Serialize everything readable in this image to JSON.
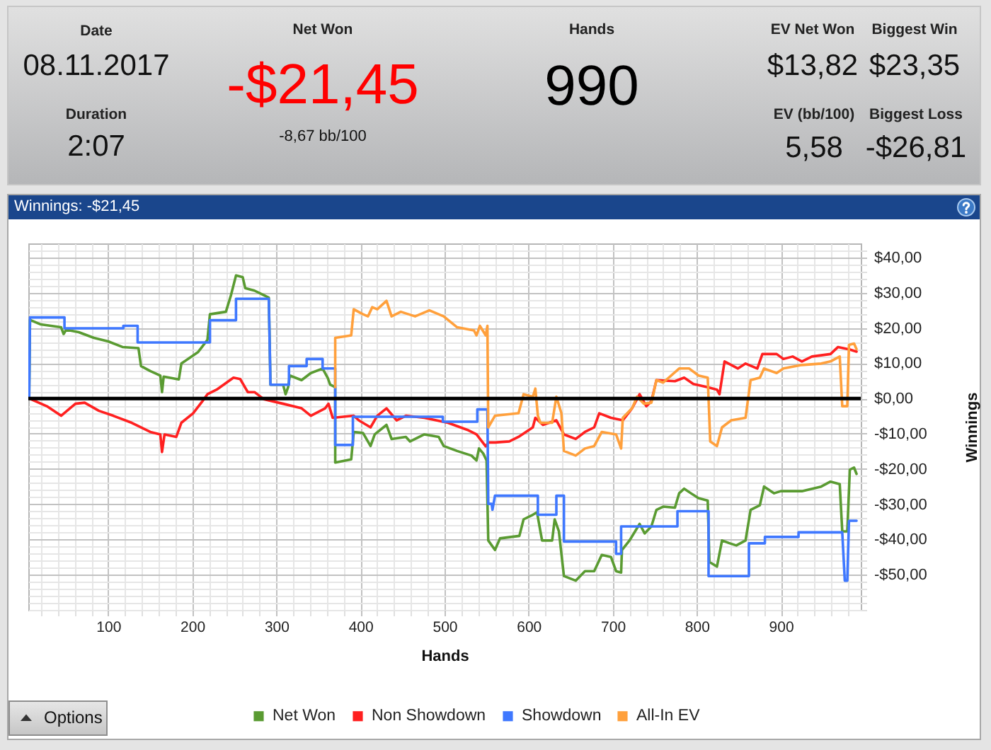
{
  "chart_data": [
    {
      "type": "other",
      "annotations": [
        "Date",
        "08.11.2017",
        "Duration",
        "2:07",
        "Net Won",
        "-$21,45",
        "-8,67 bb/100",
        "Hands",
        "990",
        "EV Net Won",
        "$13,82",
        "EV (bb/100)",
        "5,58",
        "Biggest Win",
        "$23,35",
        "Biggest Loss",
        "-$26,81"
      ]
    },
    {
      "type": "line",
      "title": "Winnings: -$21,45",
      "xlabel": "Hands",
      "ylabel": "Winnings",
      "xlim": [
        5,
        995
      ],
      "ylim": [
        -60,
        44
      ],
      "xticks": [
        {
          "value": 20,
          "label": null
        },
        {
          "value": 40,
          "label": null
        },
        {
          "value": 60,
          "label": null
        },
        {
          "value": 80,
          "label": null
        },
        100,
        {
          "value": 120,
          "label": null
        },
        {
          "value": 140,
          "label": null
        },
        {
          "value": 160,
          "label": null
        },
        {
          "value": 180,
          "label": null
        },
        200,
        {
          "value": 220,
          "label": null
        },
        {
          "value": 240,
          "label": null
        },
        {
          "value": 260,
          "label": null
        },
        {
          "value": 280,
          "label": null
        },
        300,
        {
          "value": 320,
          "label": null
        },
        {
          "value": 340,
          "label": null
        },
        {
          "value": 360,
          "label": null
        },
        {
          "value": 380,
          "label": null
        },
        400,
        {
          "value": 420,
          "label": null
        },
        {
          "value": 440,
          "label": null
        },
        {
          "value": 460,
          "label": null
        },
        {
          "value": 480,
          "label": null
        },
        500,
        {
          "value": 520,
          "label": null
        },
        {
          "value": 540,
          "label": null
        },
        {
          "value": 560,
          "label": null
        },
        {
          "value": 580,
          "label": null
        },
        600,
        {
          "value": 620,
          "label": null
        },
        {
          "value": 640,
          "label": null
        },
        {
          "value": 660,
          "label": null
        },
        {
          "value": 680,
          "label": null
        },
        700,
        {
          "value": 720,
          "label": null
        },
        {
          "value": 740,
          "label": null
        },
        {
          "value": 760,
          "label": null
        },
        {
          "value": 780,
          "label": null
        },
        800,
        {
          "value": 820,
          "label": null
        },
        {
          "value": 840,
          "label": null
        },
        {
          "value": 860,
          "label": null
        },
        {
          "value": 880,
          "label": null
        },
        900,
        {
          "value": 920,
          "label": null
        },
        {
          "value": 940,
          "label": null
        },
        {
          "value": 960,
          "label": null
        },
        {
          "value": 980,
          "label": null
        }
      ],
      "yticks": [
        {
          "value": -60,
          "label": null
        },
        {
          "value": -58,
          "label": null
        },
        {
          "value": -56,
          "label": null
        },
        {
          "value": -54,
          "label": null
        },
        {
          "value": -52,
          "label": null
        },
        {
          "value": -50,
          "label": "-$50,00"
        },
        {
          "value": -48,
          "label": null
        },
        {
          "value": -46,
          "label": null
        },
        {
          "value": -44,
          "label": null
        },
        {
          "value": -42,
          "label": null
        },
        {
          "value": -40,
          "label": "-$40,00"
        },
        {
          "value": -38,
          "label": null
        },
        {
          "value": -36,
          "label": null
        },
        {
          "value": -34,
          "label": null
        },
        {
          "value": -32,
          "label": null
        },
        {
          "value": -30,
          "label": "-$30,00"
        },
        {
          "value": -28,
          "label": null
        },
        {
          "value": -26,
          "label": null
        },
        {
          "value": -24,
          "label": null
        },
        {
          "value": -22,
          "label": null
        },
        {
          "value": -20,
          "label": "-$20,00"
        },
        {
          "value": -18,
          "label": null
        },
        {
          "value": -16,
          "label": null
        },
        {
          "value": -14,
          "label": null
        },
        {
          "value": -12,
          "label": null
        },
        {
          "value": -10,
          "label": "-$10,00"
        },
        {
          "value": -8,
          "label": null
        },
        {
          "value": -6,
          "label": null
        },
        {
          "value": -4,
          "label": null
        },
        {
          "value": -2,
          "label": null
        },
        {
          "value": 0,
          "label": "$0,00"
        },
        {
          "value": 2,
          "label": null
        },
        {
          "value": 4,
          "label": null
        },
        {
          "value": 6,
          "label": null
        },
        {
          "value": 8,
          "label": null
        },
        {
          "value": 10,
          "label": "$10,00"
        },
        {
          "value": 12,
          "label": null
        },
        {
          "value": 14,
          "label": null
        },
        {
          "value": 16,
          "label": null
        },
        {
          "value": 18,
          "label": null
        },
        {
          "value": 20,
          "label": "$20,00"
        },
        {
          "value": 22,
          "label": null
        },
        {
          "value": 24,
          "label": null
        },
        {
          "value": 26,
          "label": null
        },
        {
          "value": 28,
          "label": null
        },
        {
          "value": 30,
          "label": "$30,00"
        },
        {
          "value": 32,
          "label": null
        },
        {
          "value": 34,
          "label": null
        },
        {
          "value": 36,
          "label": null
        },
        {
          "value": 38,
          "label": null
        },
        {
          "value": 40,
          "label": "$40,00"
        },
        {
          "value": 42,
          "label": null
        }
      ],
      "grid": true,
      "legend": "bottom",
      "ref_lines": [
        {
          "axis": "y",
          "value": 0,
          "color": "#000000"
        }
      ],
      "annotations": [
        "Options"
      ],
      "series": [
        {
          "name": "Net Won",
          "color": "#5a9b32",
          "x": [
            6,
            7,
            20,
            35,
            44,
            47,
            50,
            65,
            83,
            100,
            117,
            136,
            139,
            150,
            162,
            164,
            166,
            184,
            187,
            207,
            218,
            221,
            240,
            246,
            252,
            260,
            263,
            274,
            285,
            291,
            293,
            308,
            311,
            314,
            316,
            330,
            341,
            355,
            361,
            364,
            370,
            370,
            389,
            392,
            403,
            412,
            417,
            431,
            437,
            454,
            459,
            476,
            493,
            499,
            515,
            532,
            538,
            541,
            546,
            550,
            552,
            560,
            566,
            589,
            594,
            605,
            610,
            614,
            616,
            628,
            631,
            636,
            642,
            656,
            667,
            678,
            687,
            698,
            704,
            710,
            711,
            720,
            732,
            738,
            746,
            752,
            760,
            774,
            779,
            785,
            793,
            802,
            813,
            815,
            824,
            830,
            838,
            847,
            858,
            864,
            875,
            880,
            892,
            900,
            925,
            948,
            959,
            970,
            973,
            979,
            982,
            987,
            990
          ],
          "values": [
            0,
            22.3,
            21,
            20.5,
            20.2,
            18.3,
            19.5,
            18.8,
            17.2,
            16.2,
            14.6,
            14.3,
            9.2,
            7.8,
            6.5,
            1.8,
            6.2,
            5.4,
            9.9,
            13.2,
            16.6,
            23.9,
            24.6,
            29.3,
            34.9,
            34.4,
            31.3,
            30.6,
            29.3,
            28.6,
            3.9,
            3.9,
            1.2,
            3.2,
            6.5,
            5.2,
            7.2,
            8.5,
            5.9,
            3.9,
            3.2,
            -18.2,
            -17.3,
            -9.5,
            -9.8,
            -13.5,
            -10.2,
            -7.5,
            -11.5,
            -10.9,
            -12.2,
            -10.2,
            -10.9,
            -13.5,
            -14.9,
            -16.2,
            -17.6,
            -14.2,
            -15.6,
            -17.6,
            -40.3,
            -43,
            -39.7,
            -39,
            -34.3,
            -33,
            -32.3,
            -37.7,
            -40.3,
            -40.3,
            -34.3,
            -37.7,
            -50.4,
            -51.7,
            -49,
            -49,
            -44.4,
            -45,
            -49,
            -49.4,
            -43,
            -40.3,
            -35.6,
            -38.3,
            -36.3,
            -31.6,
            -30.7,
            -31,
            -26.9,
            -25.6,
            -26.9,
            -28.3,
            -29,
            -46.4,
            -47.7,
            -40.3,
            -41,
            -41.7,
            -40.3,
            -31.6,
            -30.3,
            -25,
            -26.9,
            -26.3,
            -26.3,
            -25,
            -23.6,
            -24.3,
            -37.7,
            -37.7,
            -20.2,
            -19.6,
            -21.4
          ]
        },
        {
          "name": "Non Showdown",
          "color": "#ff2020",
          "x": [
            6,
            27,
            44,
            61,
            72,
            89,
            106,
            128,
            150,
            162,
            164,
            167,
            181,
            187,
            201,
            212,
            218,
            229,
            249,
            257,
            266,
            274,
            285,
            308,
            330,
            341,
            358,
            362,
            367,
            392,
            398,
            412,
            420,
            431,
            443,
            454,
            476,
            504,
            527,
            538,
            549,
            552,
            560,
            577,
            588,
            605,
            608,
            617,
            633,
            642,
            656,
            667,
            678,
            684,
            698,
            712,
            723,
            732,
            740,
            746,
            752,
            774,
            785,
            796,
            813,
            824,
            827,
            833,
            849,
            858,
            872,
            878,
            895,
            903,
            914,
            925,
            937,
            959,
            968,
            982,
            990
          ],
          "values": [
            0,
            -2.2,
            -4.9,
            -1.5,
            -1.2,
            -3.5,
            -4.9,
            -6.9,
            -9.5,
            -10.2,
            -15.2,
            -10.2,
            -10.9,
            -6.9,
            -4.2,
            -0.8,
            1.2,
            2.5,
            5.9,
            5.5,
            1.8,
            1.8,
            -0.2,
            -1.5,
            -2.8,
            -4.9,
            -2.8,
            -1.5,
            -5.5,
            -4.9,
            -6.2,
            -8.2,
            -4.9,
            -2.8,
            -6.2,
            -4.9,
            -5.5,
            -6.9,
            -8.9,
            -10.2,
            -13.6,
            -12.5,
            -12.5,
            -12.2,
            -10.9,
            -8.2,
            -5.5,
            -7.5,
            -6.2,
            -10.2,
            -11.5,
            -9.5,
            -8.2,
            -4.2,
            -5.5,
            -6.2,
            -2.8,
            1.2,
            -2.2,
            -0.8,
            5.2,
            4.9,
            5.9,
            4.1,
            3.2,
            2.5,
            1.2,
            10.5,
            8.5,
            9.9,
            8.5,
            12.6,
            12.6,
            11.2,
            11.9,
            10.5,
            11.9,
            12.6,
            14.6,
            13.9,
            13.3
          ]
        },
        {
          "name": "Showdown",
          "color": "#3f78ff",
          "x": [
            6,
            7,
            48,
            48,
            118,
            118,
            135,
            135,
            221,
            221,
            252,
            252,
            291,
            293,
            315,
            315,
            336,
            336,
            355,
            355,
            370,
            370,
            391,
            391,
            498,
            498,
            539,
            539,
            551,
            552,
            556,
            557,
            560,
            611,
            611,
            633,
            633,
            642,
            642,
            704,
            704,
            710,
            710,
            777,
            777,
            814,
            814,
            862,
            862,
            881,
            881,
            921,
            921,
            973,
            976,
            979,
            981,
            990
          ],
          "values": [
            0,
            23,
            23,
            19.9,
            19.9,
            20.6,
            20.6,
            15.9,
            15.9,
            22.2,
            22.2,
            28.3,
            28.3,
            3.9,
            3.9,
            9.2,
            9.2,
            11.2,
            11.2,
            8.5,
            8.5,
            -13.2,
            -13.2,
            -5.2,
            -5.2,
            -6.6,
            -6.6,
            -3.1,
            -3.1,
            -29.9,
            -29.9,
            -31.6,
            -27.6,
            -27.6,
            -33,
            -33,
            -27.6,
            -27.6,
            -40.6,
            -40.6,
            -44.1,
            -44.1,
            -36.3,
            -36.3,
            -32,
            -32,
            -50.4,
            -50.4,
            -41.1,
            -41.1,
            -39.3,
            -39.3,
            -38,
            -38,
            -51.7,
            -51.7,
            -34.7,
            -34.7
          ]
        },
        {
          "name": "All-In EV",
          "color": "#ffa03c",
          "x": [
            370,
            370,
            389,
            392,
            403,
            409,
            414,
            420,
            431,
            437,
            448,
            465,
            482,
            499,
            515,
            535,
            538,
            542,
            549,
            551,
            552,
            560,
            588,
            594,
            605,
            608,
            611,
            614,
            628,
            633,
            639,
            642,
            656,
            667,
            678,
            687,
            704,
            710,
            712,
            723,
            729,
            737,
            746,
            752,
            760,
            779,
            791,
            802,
            813,
            816,
            824,
            830,
            841,
            858,
            864,
            875,
            880,
            895,
            903,
            925,
            948,
            959,
            970,
            973,
            979,
            981,
            987,
            990
          ],
          "values": [
            3.2,
            17.2,
            17.9,
            25.3,
            23.9,
            23.3,
            25.9,
            25.3,
            27.7,
            23.3,
            24.6,
            23.3,
            25,
            23.3,
            20.2,
            19.3,
            17.9,
            20.6,
            17.9,
            20.6,
            -8.2,
            -4.9,
            -4.2,
            1.2,
            0.5,
            2.8,
            -4.9,
            -6.9,
            -6.9,
            0.5,
            -4.2,
            -14.9,
            -16.2,
            -14.2,
            -13.5,
            -9.5,
            -10.2,
            -14.2,
            -5.5,
            -2.8,
            0.5,
            -1.5,
            -1.2,
            5.2,
            4.5,
            8.5,
            8.5,
            6.5,
            5.9,
            -12.2,
            -13.5,
            -8.2,
            -6.2,
            -5.5,
            5.2,
            5.9,
            8.5,
            7.2,
            8.5,
            9.5,
            9.9,
            10.5,
            11.9,
            -2.2,
            -2.2,
            15.2,
            15.6,
            14
          ]
        }
      ]
    }
  ]
}
